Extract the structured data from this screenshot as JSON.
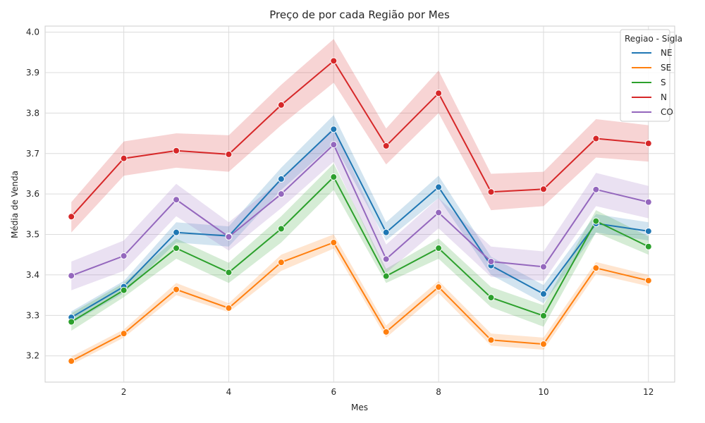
{
  "chart_data": {
    "type": "line",
    "title": "Preço de por cada Região por Mes",
    "xlabel": "Mes",
    "ylabel": "Média de Venda",
    "x": [
      1,
      2,
      3,
      4,
      5,
      6,
      7,
      8,
      9,
      10,
      11,
      12
    ],
    "xlim": [
      0.5,
      12.5
    ],
    "ylim": [
      3.135,
      4.015
    ],
    "xticks": [
      "2",
      "4",
      "6",
      "8",
      "10",
      "12"
    ],
    "yticks": [
      "3.2",
      "3.3",
      "3.4",
      "3.5",
      "3.6",
      "3.7",
      "3.8",
      "3.9",
      "4.0"
    ],
    "grid": true,
    "markers": true,
    "legend_title": "Regiao - Sigla",
    "legend_position": "top-right",
    "series": [
      {
        "name": "NE",
        "color": "#1f77b4",
        "values": [
          3.295,
          3.371,
          3.505,
          3.496,
          3.637,
          3.76,
          3.505,
          3.617,
          3.423,
          3.353,
          3.527,
          3.508
        ],
        "lower": [
          3.28,
          3.355,
          3.48,
          3.47,
          3.61,
          3.725,
          3.485,
          3.59,
          3.4,
          3.33,
          3.505,
          3.485
        ],
        "upper": [
          3.31,
          3.385,
          3.53,
          3.52,
          3.665,
          3.795,
          3.53,
          3.645,
          3.445,
          3.375,
          3.55,
          3.53
        ]
      },
      {
        "name": "SE",
        "color": "#ff7f0e",
        "values": [
          3.187,
          3.255,
          3.364,
          3.318,
          3.431,
          3.48,
          3.259,
          3.37,
          3.239,
          3.229,
          3.417,
          3.386
        ],
        "lower": [
          3.178,
          3.245,
          3.35,
          3.308,
          3.41,
          3.465,
          3.245,
          3.355,
          3.225,
          3.215,
          3.402,
          3.372
        ],
        "upper": [
          3.198,
          3.265,
          3.38,
          3.33,
          3.45,
          3.5,
          3.275,
          3.385,
          3.255,
          3.245,
          3.432,
          3.4
        ]
      },
      {
        "name": "S",
        "color": "#2ca02c",
        "values": [
          3.284,
          3.362,
          3.466,
          3.406,
          3.514,
          3.642,
          3.397,
          3.466,
          3.344,
          3.299,
          3.533,
          3.47
        ],
        "lower": [
          3.262,
          3.345,
          3.44,
          3.38,
          3.48,
          3.61,
          3.38,
          3.44,
          3.32,
          3.272,
          3.505,
          3.45
        ],
        "upper": [
          3.305,
          3.38,
          3.49,
          3.43,
          3.545,
          3.675,
          3.415,
          3.49,
          3.37,
          3.325,
          3.56,
          3.495
        ]
      },
      {
        "name": "N",
        "color": "#d62728",
        "values": [
          3.544,
          3.688,
          3.707,
          3.698,
          3.82,
          3.929,
          3.719,
          3.849,
          3.605,
          3.612,
          3.737,
          3.725
        ],
        "lower": [
          3.505,
          3.645,
          3.665,
          3.655,
          3.77,
          3.875,
          3.673,
          3.8,
          3.56,
          3.57,
          3.69,
          3.68
        ],
        "upper": [
          3.58,
          3.73,
          3.75,
          3.745,
          3.87,
          3.983,
          3.762,
          3.905,
          3.65,
          3.655,
          3.785,
          3.77
        ]
      },
      {
        "name": "CO",
        "color": "#9467bd",
        "values": [
          3.398,
          3.447,
          3.586,
          3.494,
          3.6,
          3.722,
          3.439,
          3.554,
          3.433,
          3.42,
          3.611,
          3.58
        ],
        "lower": [
          3.362,
          3.41,
          3.545,
          3.46,
          3.565,
          3.68,
          3.405,
          3.515,
          3.395,
          3.385,
          3.57,
          3.54
        ],
        "upper": [
          3.433,
          3.485,
          3.625,
          3.53,
          3.635,
          3.765,
          3.475,
          3.59,
          3.47,
          3.458,
          3.652,
          3.62
        ]
      }
    ]
  }
}
